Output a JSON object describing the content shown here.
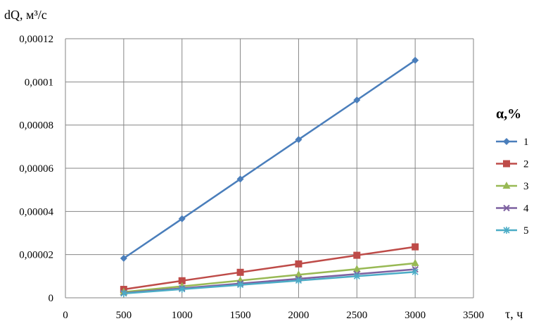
{
  "chart_data": {
    "type": "line",
    "ylabel": "dQ, м³/с",
    "xlabel": "τ, ч",
    "xlim": [
      0,
      3500
    ],
    "ylim": [
      0,
      0.00012
    ],
    "x_ticks": [
      0,
      500,
      1000,
      1500,
      2000,
      2500,
      3000,
      3500
    ],
    "x_tick_labels": [
      "0",
      "500",
      "1000",
      "1500",
      "2000",
      "2500",
      "3000",
      "3500"
    ],
    "y_ticks": [
      0,
      2e-05,
      4e-05,
      6e-05,
      8e-05,
      0.0001,
      0.00012
    ],
    "y_tick_labels": [
      "0",
      "0,00002",
      "0,00004",
      "0,00006",
      "0,00008",
      "0,0001",
      "0,00012"
    ],
    "grid": true,
    "legend_title": "α,%",
    "legend_placement": "right",
    "x": [
      500,
      1000,
      1500,
      2000,
      2500,
      3000
    ],
    "series": [
      {
        "name": "1",
        "color": "#4a7ebb",
        "marker": "diamond",
        "values": [
          1.83e-05,
          3.66e-05,
          5.5e-05,
          7.33e-05,
          9.16e-05,
          0.00011
        ]
      },
      {
        "name": "2",
        "color": "#be4b48",
        "marker": "square",
        "values": [
          3.9e-06,
          7.9e-06,
          1.18e-05,
          1.57e-05,
          1.97e-05,
          2.36e-05
        ]
      },
      {
        "name": "3",
        "color": "#98b954",
        "marker": "triangle",
        "values": [
          2.7e-06,
          5.3e-06,
          8e-06,
          1.07e-05,
          1.33e-05,
          1.6e-05
        ]
      },
      {
        "name": "4",
        "color": "#7d60a0",
        "marker": "x",
        "values": [
          2.2e-06,
          4.4e-06,
          6.6e-06,
          8.8e-06,
          1.1e-05,
          1.32e-05
        ]
      },
      {
        "name": "5",
        "color": "#4bacc6",
        "marker": "star",
        "values": [
          2e-06,
          4e-06,
          6e-06,
          8e-06,
          1e-05,
          1.2e-05
        ]
      }
    ]
  }
}
